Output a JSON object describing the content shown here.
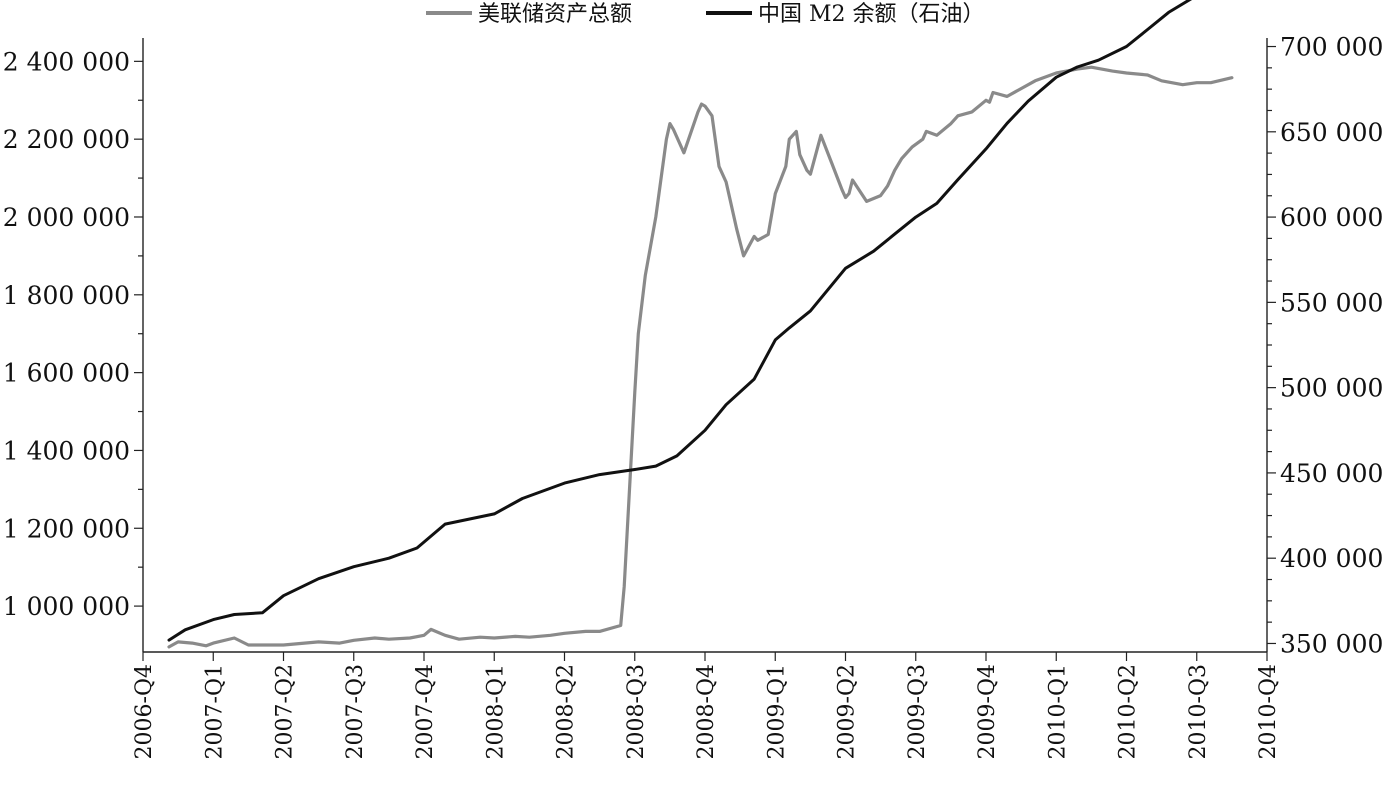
{
  "chart_data": {
    "type": "line",
    "title": "",
    "xlabel": "",
    "ylabel": "",
    "y2label": "",
    "categories": [
      "2006-Q4",
      "2007-Q1",
      "2007-Q2",
      "2007-Q3",
      "2007-Q4",
      "2008-Q1",
      "2008-Q2",
      "2008-Q3",
      "2008-Q4",
      "2009-Q1",
      "2009-Q2",
      "2009-Q3",
      "2009-Q4",
      "2010-Q1",
      "2010-Q2",
      "2010-Q3",
      "2010-Q4"
    ],
    "ylim": [
      882000,
      2460000
    ],
    "y2lim": [
      345000,
      705000
    ],
    "y_ticks": [
      "2 400 000",
      "2 200 000",
      "2 000 000",
      "1 800 000",
      "1 600 000",
      "1 400 000",
      "1 200 000",
      "1 000 000"
    ],
    "y_tick_values": [
      2400000,
      2200000,
      2000000,
      1800000,
      1600000,
      1400000,
      1200000,
      1000000
    ],
    "y2_ticks": [
      "700 000",
      "650 000",
      "600 000",
      "550 000",
      "500 000",
      "450 000",
      "400 000",
      "350 000"
    ],
    "y2_tick_values": [
      700000,
      650000,
      600000,
      550000,
      500000,
      450000,
      400000,
      350000
    ],
    "grid": false,
    "legend_position": "top-center",
    "series": [
      {
        "name": "美联储资产总额",
        "axis": "left",
        "color": "#8a8a8a",
        "x": [
          0.37,
          0.5,
          0.7,
          0.9,
          1.0,
          1.3,
          1.5,
          2.0,
          2.5,
          2.8,
          3.0,
          3.3,
          3.5,
          3.8,
          4.0,
          4.1,
          4.3,
          4.5,
          4.8,
          5.0,
          5.3,
          5.5,
          5.8,
          6.0,
          6.3,
          6.5,
          6.8,
          6.85,
          7.0,
          7.05,
          7.15,
          7.3,
          7.45,
          7.5,
          7.55,
          7.7,
          7.9,
          7.95,
          8.0,
          8.1,
          8.2,
          8.3,
          8.35,
          8.45,
          8.55,
          8.7,
          8.75,
          8.9,
          9.0,
          9.15,
          9.2,
          9.3,
          9.35,
          9.45,
          9.5,
          9.65,
          9.8,
          9.95,
          10.0,
          10.05,
          10.1,
          10.3,
          10.5,
          10.6,
          10.7,
          10.8,
          10.95,
          11.1,
          11.15,
          11.3,
          11.5,
          11.6,
          11.8,
          12.0,
          12.05,
          12.1,
          12.3,
          12.5,
          12.7,
          13.0,
          13.3,
          13.5,
          13.8,
          14.0,
          14.3,
          14.5,
          14.8,
          15.0,
          15.2,
          15.5
        ],
        "values": [
          895000,
          908000,
          905000,
          898000,
          905000,
          918000,
          900000,
          900000,
          908000,
          905000,
          912000,
          918000,
          915000,
          918000,
          925000,
          940000,
          925000,
          915000,
          920000,
          918000,
          922000,
          920000,
          925000,
          930000,
          935000,
          935000,
          950000,
          1050000,
          1550000,
          1700000,
          1850000,
          2000000,
          2200000,
          2240000,
          2225000,
          2165000,
          2270000,
          2290000,
          2285000,
          2260000,
          2130000,
          2090000,
          2050000,
          1970000,
          1900000,
          1950000,
          1940000,
          1955000,
          2060000,
          2130000,
          2200000,
          2220000,
          2160000,
          2120000,
          2110000,
          2210000,
          2140000,
          2070000,
          2050000,
          2060000,
          2095000,
          2040000,
          2055000,
          2080000,
          2120000,
          2150000,
          2180000,
          2200000,
          2220000,
          2210000,
          2240000,
          2260000,
          2270000,
          2300000,
          2295000,
          2320000,
          2310000,
          2330000,
          2350000,
          2370000,
          2380000,
          2385000,
          2375000,
          2370000,
          2365000,
          2350000,
          2340000,
          2345000,
          2345000,
          2358000
        ]
      },
      {
        "name": "中国 M2 余额（石油）",
        "axis": "right",
        "color": "#111111",
        "x": [
          0.37,
          0.6,
          1.0,
          1.3,
          1.7,
          2.0,
          2.5,
          3.0,
          3.5,
          3.9,
          4.3,
          5.0,
          5.4,
          6.0,
          6.5,
          7.0,
          7.3,
          7.6,
          8.0,
          8.3,
          8.7,
          9.0,
          9.2,
          9.5,
          9.8,
          10.0,
          10.4,
          10.7,
          11.0,
          11.3,
          11.6,
          12.0,
          12.3,
          12.6,
          13.0,
          13.3,
          13.6,
          14.0,
          14.3,
          14.6,
          15.0,
          15.2
        ],
        "values": [
          352000,
          358000,
          364000,
          367000,
          368000,
          378000,
          388000,
          395000,
          400000,
          406000,
          420000,
          426000,
          435000,
          444000,
          449000,
          452000,
          454000,
          460000,
          475000,
          490000,
          505000,
          528000,
          535000,
          545000,
          560000,
          570000,
          580000,
          590000,
          600000,
          608000,
          622000,
          640000,
          655000,
          668000,
          682000,
          688000,
          692000,
          700000,
          710000,
          720000,
          730000,
          733000
        ]
      }
    ]
  }
}
